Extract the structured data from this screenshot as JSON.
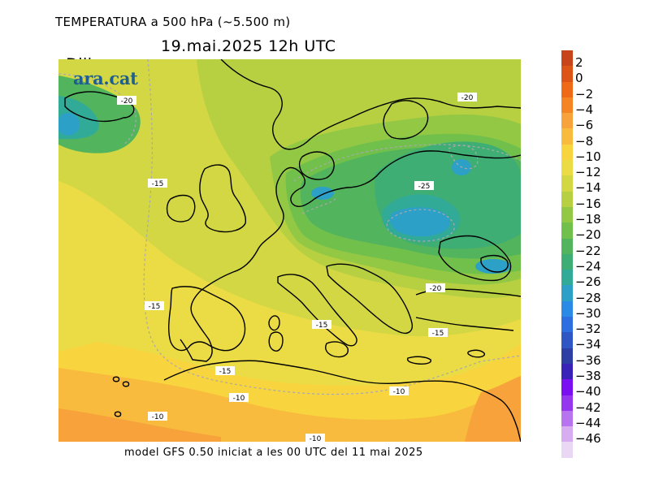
{
  "header": {
    "title": "TEMPERATURA a 500 hPa (~5.500 m)",
    "day": "Dilluns",
    "date": "19.mai.2025 12h UTC"
  },
  "brand": "ara.cat",
  "footer": "model GFS 0.50 iniciat a les 00 UTC del 11 mai 2025",
  "map_labels": [
    "-20",
    "-20",
    "-15",
    "-25",
    "-15",
    "-20",
    "-15",
    "-15",
    "-15",
    "-10",
    "-10",
    "-10",
    "-10"
  ],
  "colorbar": {
    "labels": [
      "2",
      "0",
      "−2",
      "−4",
      "−6",
      "−8",
      "−10",
      "−12",
      "−14",
      "−16",
      "−18",
      "−20",
      "−22",
      "−24",
      "−26",
      "−28",
      "−30",
      "−32",
      "−34",
      "−36",
      "−38",
      "−40",
      "−42",
      "−44",
      "−46"
    ],
    "colors": [
      "#c8441a",
      "#dd5516",
      "#ee6a16",
      "#f58522",
      "#f7a23a",
      "#f8bb3e",
      "#f8d43f",
      "#ebdc45",
      "#d3d744",
      "#b6d041",
      "#93c844",
      "#72c04c",
      "#52b45c",
      "#3fae74",
      "#32aa98",
      "#2ca0c7",
      "#2a8ae6",
      "#2d6fe0",
      "#2f56c4",
      "#2d3fa4",
      "#3822b8",
      "#7a10f2",
      "#9437ee",
      "#b874ee",
      "#d7acf0",
      "#ead6f5"
    ]
  }
}
